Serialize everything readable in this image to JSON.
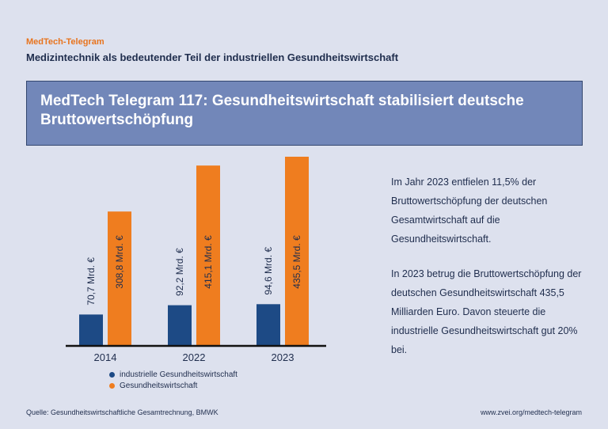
{
  "header": {
    "brand": "MedTech-Telegram",
    "subtitle": "Medizintechnik als bedeutender Teil der industriellen Gesundheitswirtschaft",
    "title": "MedTech Telegram 117: Gesundheitswirtschaft stabilisiert deutsche Bruttowertschöpfung"
  },
  "chart_data": {
    "type": "bar",
    "categories": [
      "2014",
      "2022",
      "2023"
    ],
    "series": [
      {
        "name": "industrielle Gesundheitswirtschaft",
        "color": "#1d4a85",
        "values": [
          70.7,
          92.2,
          94.6
        ],
        "labels": [
          "70,7 Mrd. €",
          "92,2 Mrd. €",
          "94,6 Mrd. €"
        ]
      },
      {
        "name": "Gesundheitswirtschaft",
        "color": "#ef7d1f",
        "values": [
          308.8,
          415.1,
          435.5
        ],
        "labels": [
          "308,8 Mrd. €",
          "415,1 Mrd. €",
          "435,5 Mrd. €"
        ]
      }
    ],
    "ylim": [
      0,
      450
    ],
    "grid": false,
    "legend_position": "bottom"
  },
  "text": {
    "paragraph1": "Im Jahr 2023 entfielen 11,5% der Bruttowertschöpfung der deutschen Gesamtwirtschaft auf die Gesundheitswirtschaft.",
    "paragraph2": "In 2023 betrug die Bruttowertschöpfung der deutschen Gesundheitswirtschaft 435,5 Milliarden Euro. Davon steuerte die industrielle Gesundheitswirtschaft gut 20% bei."
  },
  "footer": {
    "source": "Quelle: Gesundheitswirtschaftliche Gesamtrechnung, BMWK",
    "url": "www.zvei.org/medtech-telegram"
  }
}
